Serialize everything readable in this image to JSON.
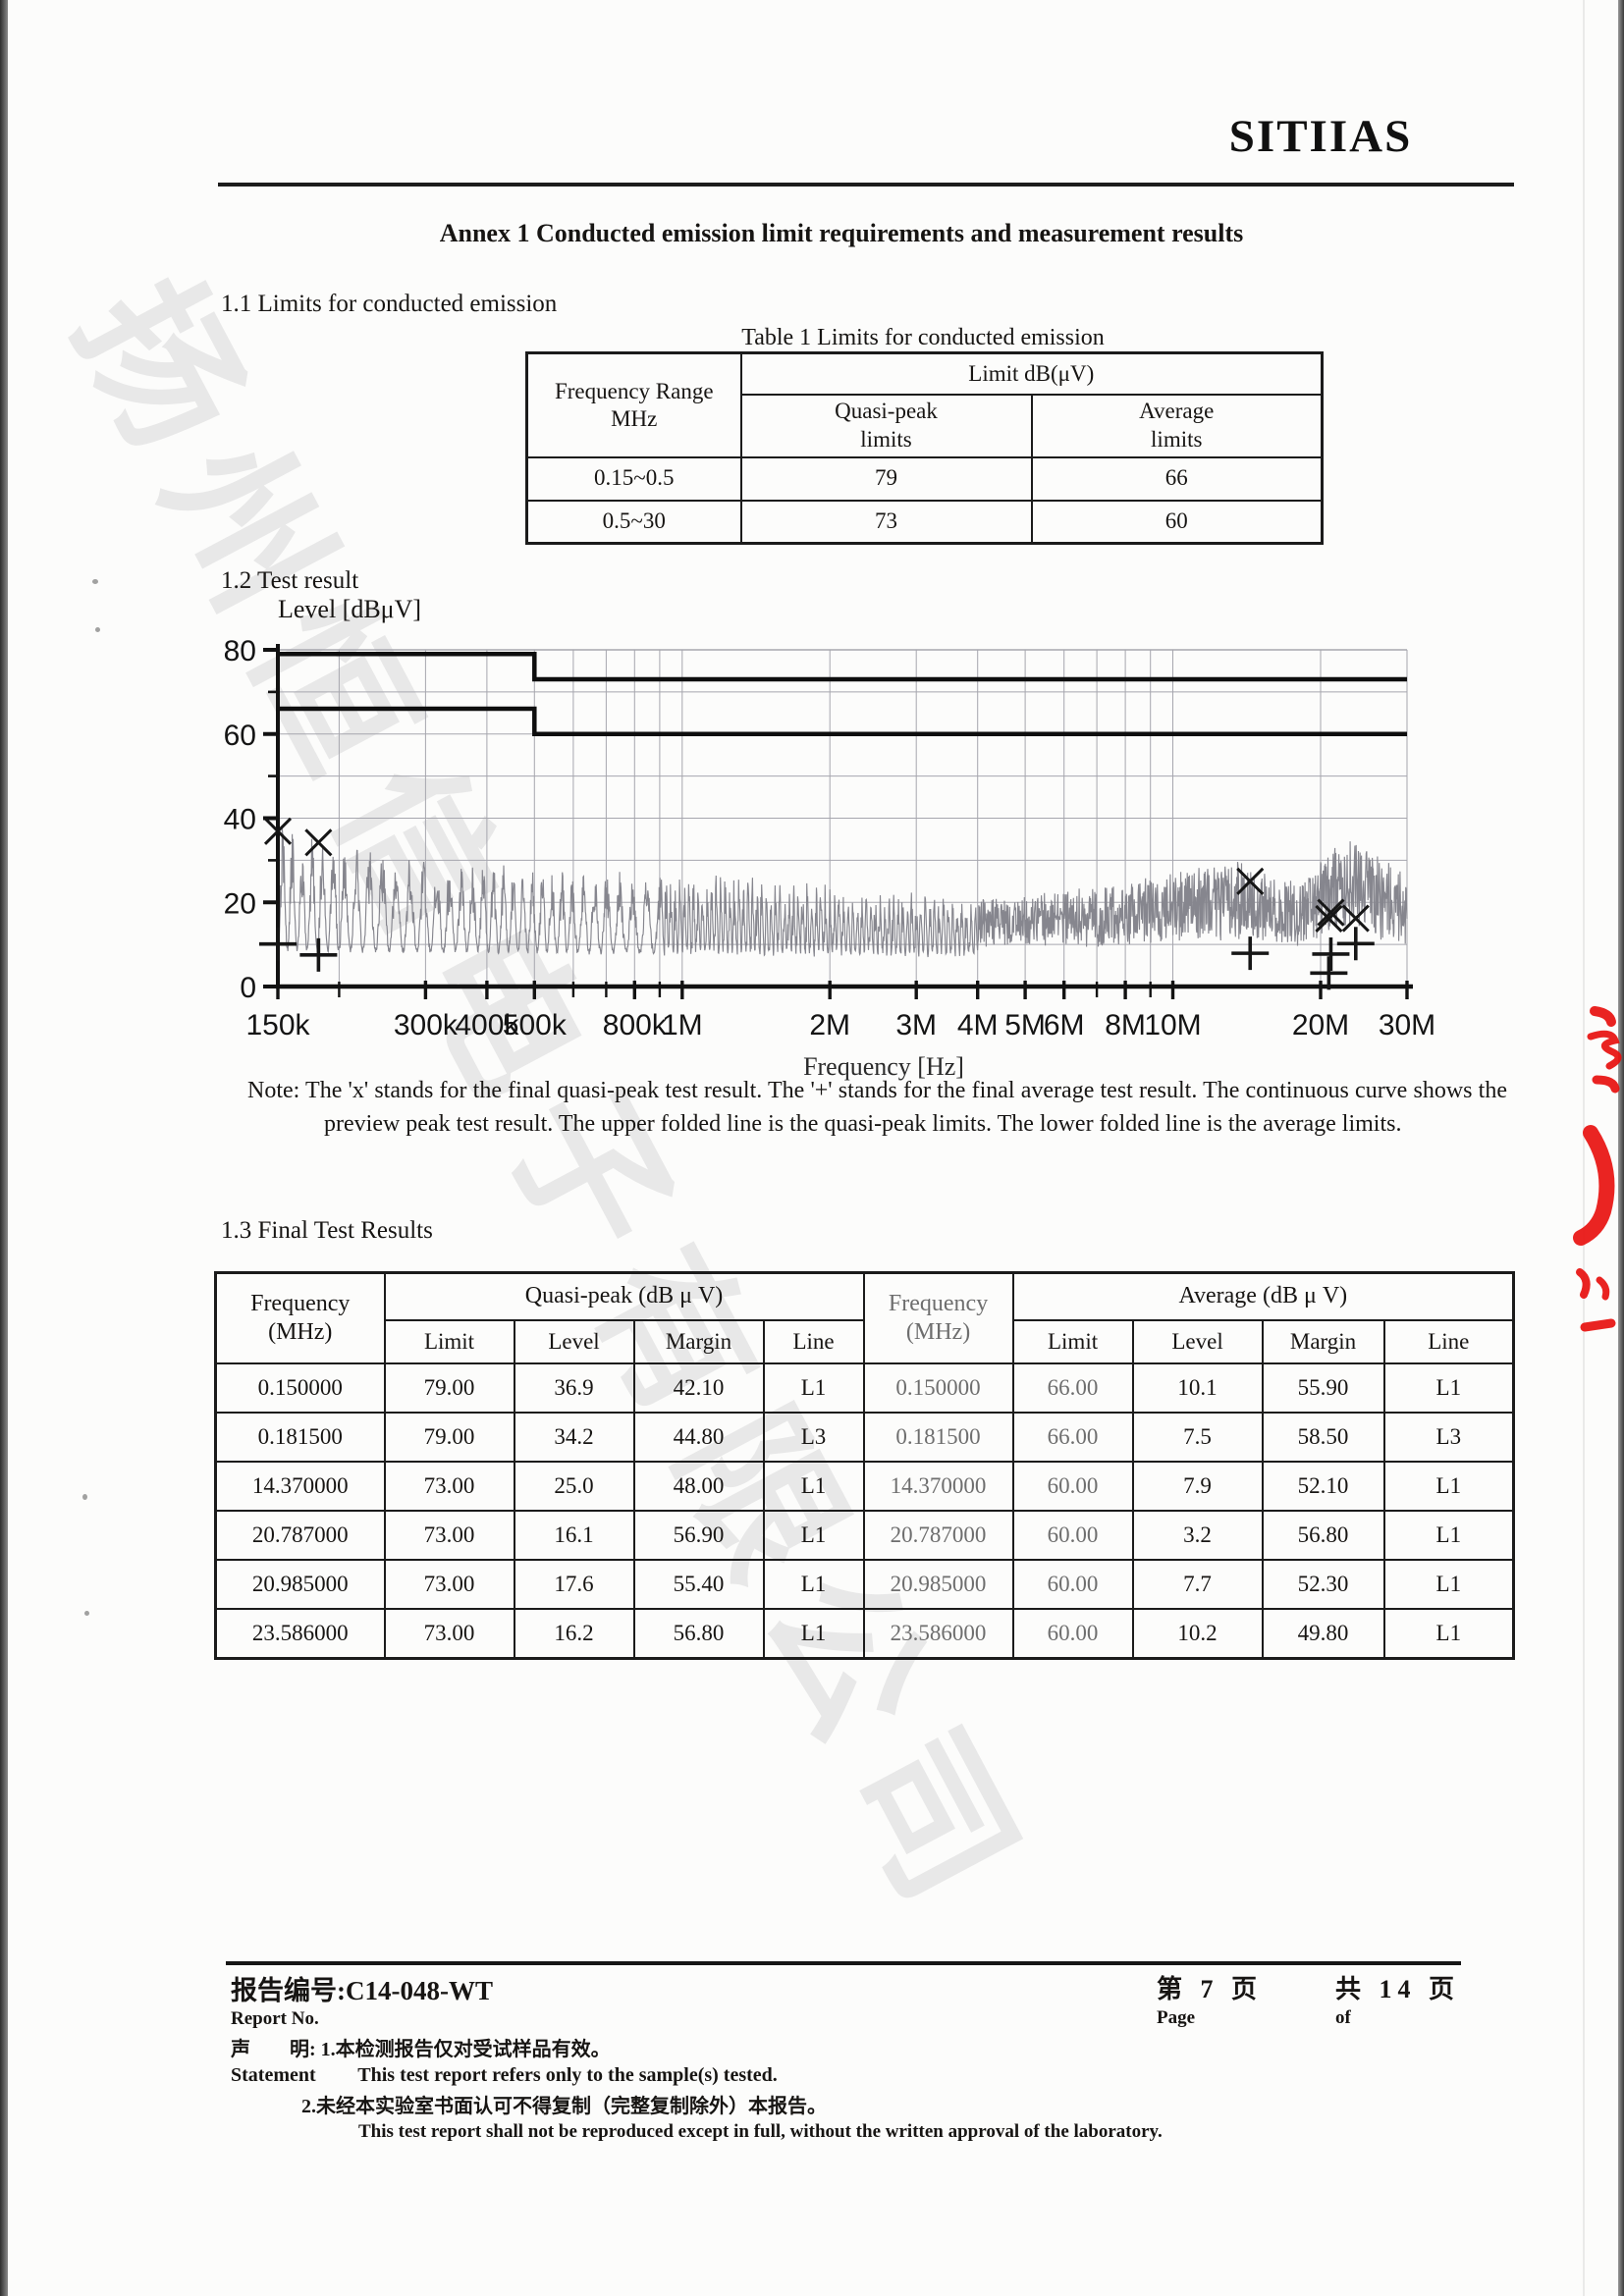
{
  "header": {
    "logo": "SITIIAS",
    "title": "Annex 1 Conducted emission limit requirements and measurement results"
  },
  "section11": {
    "heading": "1.1 Limits for conducted emission",
    "table_caption": "Table 1 Limits for conducted emission",
    "limits_table": {
      "frequency_header_line1": "Frequency Range",
      "frequency_header_line2": "MHz",
      "limit_group_header": "Limit dB(μV)",
      "quasi_peak_header_line1": "Quasi-peak",
      "quasi_peak_header_line2": "limits",
      "average_header_line1": "Average",
      "average_header_line2": "limits",
      "rows": [
        {
          "range": "0.15~0.5",
          "quasi_peak": "79",
          "average": "66"
        },
        {
          "range": "0.5~30",
          "quasi_peak": "73",
          "average": "60"
        }
      ]
    }
  },
  "section12": {
    "heading": "1.2 Test result"
  },
  "chart_data": {
    "type": "line",
    "ylabel": "Level [dBμV]",
    "xlabel": "Frequency [Hz]",
    "x_scale": "log",
    "xlim_hz": [
      150000,
      30000000
    ],
    "ylim": [
      0,
      80
    ],
    "y_ticks": [
      0,
      20,
      40,
      60,
      80
    ],
    "y_grid_step_db": 10,
    "x_grid_hz": [
      150000,
      200000,
      300000,
      400000,
      500000,
      600000,
      700000,
      800000,
      900000,
      1000000,
      2000000,
      3000000,
      4000000,
      5000000,
      6000000,
      7000000,
      8000000,
      9000000,
      10000000,
      20000000,
      30000000
    ],
    "x_tick_labels": [
      {
        "hz": 150000,
        "label": "150k"
      },
      {
        "hz": 300000,
        "label": "300k"
      },
      {
        "hz": 400000,
        "label": "400k"
      },
      {
        "hz": 500000,
        "label": "500k"
      },
      {
        "hz": 800000,
        "label": "800k"
      },
      {
        "hz": 1000000,
        "label": "1M"
      },
      {
        "hz": 2000000,
        "label": "2M"
      },
      {
        "hz": 3000000,
        "label": "3M"
      },
      {
        "hz": 4000000,
        "label": "4M"
      },
      {
        "hz": 5000000,
        "label": "5M"
      },
      {
        "hz": 6000000,
        "label": "6M"
      },
      {
        "hz": 8000000,
        "label": "8M"
      },
      {
        "hz": 10000000,
        "label": "10M"
      },
      {
        "hz": 20000000,
        "label": "20M"
      },
      {
        "hz": 30000000,
        "label": "30M"
      }
    ],
    "series": [
      {
        "name": "quasi-peak limit",
        "style": "step",
        "points": [
          [
            150000,
            79
          ],
          [
            500000,
            79
          ],
          [
            500000,
            73
          ],
          [
            30000000,
            73
          ]
        ]
      },
      {
        "name": "average limit",
        "style": "step",
        "points": [
          [
            150000,
            66
          ],
          [
            500000,
            66
          ],
          [
            500000,
            60
          ],
          [
            30000000,
            60
          ]
        ]
      },
      {
        "name": "preview peak curve",
        "style": "noise",
        "approx_range_db": [
          5,
          45
        ],
        "envelope": [
          [
            150000,
            38
          ],
          [
            300000,
            30
          ],
          [
            500000,
            28
          ],
          [
            1000000,
            26
          ],
          [
            2000000,
            24
          ],
          [
            4000000,
            20
          ],
          [
            8000000,
            24
          ],
          [
            13000000,
            30
          ],
          [
            18000000,
            24
          ],
          [
            22500000,
            36
          ],
          [
            30000000,
            26
          ]
        ]
      }
    ],
    "markers": {
      "quasi_peak_x": [
        [
          150000,
          36.9
        ],
        [
          181500,
          34.2
        ],
        [
          14370000,
          25.0
        ],
        [
          20787000,
          16.1
        ],
        [
          20985000,
          17.6
        ],
        [
          23586000,
          16.2
        ]
      ],
      "average_plus": [
        [
          150000,
          10.1
        ],
        [
          181500,
          7.5
        ],
        [
          14370000,
          7.9
        ],
        [
          20787000,
          3.2
        ],
        [
          20985000,
          7.7
        ],
        [
          23586000,
          10.2
        ]
      ]
    }
  },
  "note": {
    "text": "Note: The 'x' stands for the final quasi-peak test result. The '+' stands for the final average test result. The continuous curve shows the preview peak test result. The upper folded line is the quasi-peak limits. The lower folded line is the average limits."
  },
  "section13": {
    "heading": "1.3 Final Test Results",
    "table": {
      "frequency_header_line1": "Frequency",
      "frequency_header_line2": "(MHz)",
      "quasi_peak_group": "Quasi-peak (dB μ V)",
      "average_group": "Average (dB μ V)",
      "sub_headers": [
        "Limit",
        "Level",
        "Margin",
        "Line"
      ],
      "rows": [
        [
          "0.150000",
          "79.00",
          "36.9",
          "42.10",
          "L1",
          "0.150000",
          "66.00",
          "10.1",
          "55.90",
          "L1"
        ],
        [
          "0.181500",
          "79.00",
          "34.2",
          "44.80",
          "L3",
          "0.181500",
          "66.00",
          "7.5",
          "58.50",
          "L3"
        ],
        [
          "14.370000",
          "73.00",
          "25.0",
          "48.00",
          "L1",
          "14.370000",
          "60.00",
          "7.9",
          "52.10",
          "L1"
        ],
        [
          "20.787000",
          "73.00",
          "16.1",
          "56.90",
          "L1",
          "20.787000",
          "60.00",
          "3.2",
          "56.80",
          "L1"
        ],
        [
          "20.985000",
          "73.00",
          "17.6",
          "55.40",
          "L1",
          "20.985000",
          "60.00",
          "7.7",
          "52.30",
          "L1"
        ],
        [
          "23.586000",
          "73.00",
          "16.2",
          "56.80",
          "L1",
          "23.586000",
          "60.00",
          "10.2",
          "49.80",
          "L1"
        ]
      ]
    }
  },
  "footer": {
    "report_no_label_zh": "报告编号:",
    "report_no_value": "C14-048-WT",
    "report_no_label_en": "Report No.",
    "statement_label_zh": "声　　明:",
    "statement_item1_zh": "1.本检测报告仅对受试样品有效。",
    "statement_label_en": "Statement",
    "statement_item1_en": "This test report refers only to the sample(s) tested.",
    "statement_item2_zh": "2.未经本实验室书面认可不得复制（完整复制除外）本报告。",
    "statement_item2_en": "This test report shall not be reproduced except in full, without the written approval of the laboratory.",
    "page_zh": "第 7 页",
    "page_en": "Page",
    "of_zh": "共 14 页",
    "of_en": "of"
  },
  "watermark": {
    "text": "扬州恒信电子有限公司",
    "color": "#6e6e76"
  },
  "stamp": {
    "color": "#e8110f"
  }
}
